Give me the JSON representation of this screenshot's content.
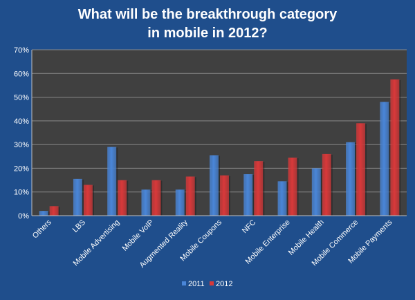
{
  "chart_data": {
    "type": "bar",
    "title_lines": [
      "What will be the breakthrough category",
      "in mobile in 2012?"
    ],
    "categories": [
      "Others",
      "LBS",
      "Mobile Advertising",
      "Mobile VoIP",
      "Augmented Reality",
      "Mobile Coupons",
      "NFC",
      "Mobile Enterprise",
      "Mobile Health",
      "Mobile Commerce",
      "Mobile Payments"
    ],
    "series": [
      {
        "name": "2011",
        "color": "#4a86d8",
        "values": [
          2,
          15.5,
          29,
          11,
          11,
          25.5,
          17.5,
          14.5,
          20,
          31,
          48
        ]
      },
      {
        "name": "2012",
        "color": "#d8393a",
        "values": [
          4,
          13,
          15,
          15,
          16.5,
          17,
          23,
          24.5,
          26,
          39,
          57.5
        ]
      }
    ],
    "ylim": [
      0,
      70
    ],
    "yticks": [
      {
        "value": 0,
        "label": "0%"
      },
      {
        "value": 10,
        "label": "10%"
      },
      {
        "value": 20,
        "label": "20%"
      },
      {
        "value": 30,
        "label": "30%"
      },
      {
        "value": 40,
        "label": "40%"
      },
      {
        "value": 50,
        "label": "50%"
      },
      {
        "value": 60,
        "label": "60%"
      },
      {
        "value": 70,
        "label": "70%"
      }
    ],
    "grid": true,
    "legend_position": "bottom",
    "plot_background": "#404040",
    "page_background": "#1f4e8c"
  }
}
